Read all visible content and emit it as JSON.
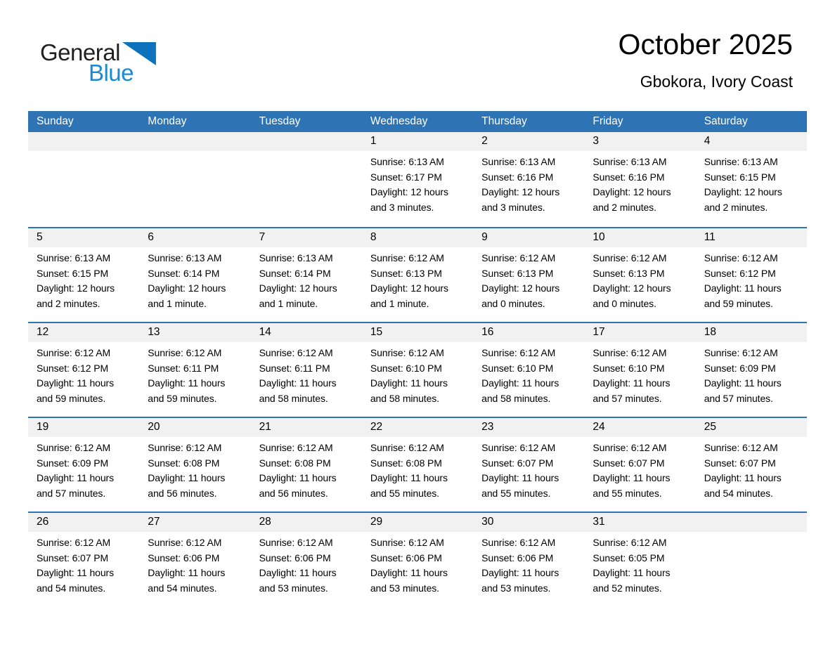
{
  "logo": {
    "word1": "General",
    "word2": "Blue"
  },
  "header": {
    "title": "October 2025",
    "location": "Gbokora, Ivory Coast"
  },
  "colors": {
    "accent": "#2E74B5",
    "day_band": "#F1F1F1",
    "logo_dark": "#231F20",
    "logo_blue": "#1A8AD2",
    "logo_triangle": "#0C72BC",
    "weekday_text": "#FFFFFF"
  },
  "calendar": {
    "weekdays": [
      "Sunday",
      "Monday",
      "Tuesday",
      "Wednesday",
      "Thursday",
      "Friday",
      "Saturday"
    ],
    "weeks": [
      [
        {
          "day": "",
          "lines": []
        },
        {
          "day": "",
          "lines": []
        },
        {
          "day": "",
          "lines": []
        },
        {
          "day": "1",
          "lines": [
            "Sunrise: 6:13 AM",
            "Sunset: 6:17 PM",
            "Daylight: 12 hours",
            "and 3 minutes."
          ]
        },
        {
          "day": "2",
          "lines": [
            "Sunrise: 6:13 AM",
            "Sunset: 6:16 PM",
            "Daylight: 12 hours",
            "and 3 minutes."
          ]
        },
        {
          "day": "3",
          "lines": [
            "Sunrise: 6:13 AM",
            "Sunset: 6:16 PM",
            "Daylight: 12 hours",
            "and 2 minutes."
          ]
        },
        {
          "day": "4",
          "lines": [
            "Sunrise: 6:13 AM",
            "Sunset: 6:15 PM",
            "Daylight: 12 hours",
            "and 2 minutes."
          ]
        }
      ],
      [
        {
          "day": "5",
          "lines": [
            "Sunrise: 6:13 AM",
            "Sunset: 6:15 PM",
            "Daylight: 12 hours",
            "and 2 minutes."
          ]
        },
        {
          "day": "6",
          "lines": [
            "Sunrise: 6:13 AM",
            "Sunset: 6:14 PM",
            "Daylight: 12 hours",
            "and 1 minute."
          ]
        },
        {
          "day": "7",
          "lines": [
            "Sunrise: 6:13 AM",
            "Sunset: 6:14 PM",
            "Daylight: 12 hours",
            "and 1 minute."
          ]
        },
        {
          "day": "8",
          "lines": [
            "Sunrise: 6:12 AM",
            "Sunset: 6:13 PM",
            "Daylight: 12 hours",
            "and 1 minute."
          ]
        },
        {
          "day": "9",
          "lines": [
            "Sunrise: 6:12 AM",
            "Sunset: 6:13 PM",
            "Daylight: 12 hours",
            "and 0 minutes."
          ]
        },
        {
          "day": "10",
          "lines": [
            "Sunrise: 6:12 AM",
            "Sunset: 6:13 PM",
            "Daylight: 12 hours",
            "and 0 minutes."
          ]
        },
        {
          "day": "11",
          "lines": [
            "Sunrise: 6:12 AM",
            "Sunset: 6:12 PM",
            "Daylight: 11 hours",
            "and 59 minutes."
          ]
        }
      ],
      [
        {
          "day": "12",
          "lines": [
            "Sunrise: 6:12 AM",
            "Sunset: 6:12 PM",
            "Daylight: 11 hours",
            "and 59 minutes."
          ]
        },
        {
          "day": "13",
          "lines": [
            "Sunrise: 6:12 AM",
            "Sunset: 6:11 PM",
            "Daylight: 11 hours",
            "and 59 minutes."
          ]
        },
        {
          "day": "14",
          "lines": [
            "Sunrise: 6:12 AM",
            "Sunset: 6:11 PM",
            "Daylight: 11 hours",
            "and 58 minutes."
          ]
        },
        {
          "day": "15",
          "lines": [
            "Sunrise: 6:12 AM",
            "Sunset: 6:10 PM",
            "Daylight: 11 hours",
            "and 58 minutes."
          ]
        },
        {
          "day": "16",
          "lines": [
            "Sunrise: 6:12 AM",
            "Sunset: 6:10 PM",
            "Daylight: 11 hours",
            "and 58 minutes."
          ]
        },
        {
          "day": "17",
          "lines": [
            "Sunrise: 6:12 AM",
            "Sunset: 6:10 PM",
            "Daylight: 11 hours",
            "and 57 minutes."
          ]
        },
        {
          "day": "18",
          "lines": [
            "Sunrise: 6:12 AM",
            "Sunset: 6:09 PM",
            "Daylight: 11 hours",
            "and 57 minutes."
          ]
        }
      ],
      [
        {
          "day": "19",
          "lines": [
            "Sunrise: 6:12 AM",
            "Sunset: 6:09 PM",
            "Daylight: 11 hours",
            "and 57 minutes."
          ]
        },
        {
          "day": "20",
          "lines": [
            "Sunrise: 6:12 AM",
            "Sunset: 6:08 PM",
            "Daylight: 11 hours",
            "and 56 minutes."
          ]
        },
        {
          "day": "21",
          "lines": [
            "Sunrise: 6:12 AM",
            "Sunset: 6:08 PM",
            "Daylight: 11 hours",
            "and 56 minutes."
          ]
        },
        {
          "day": "22",
          "lines": [
            "Sunrise: 6:12 AM",
            "Sunset: 6:08 PM",
            "Daylight: 11 hours",
            "and 55 minutes."
          ]
        },
        {
          "day": "23",
          "lines": [
            "Sunrise: 6:12 AM",
            "Sunset: 6:07 PM",
            "Daylight: 11 hours",
            "and 55 minutes."
          ]
        },
        {
          "day": "24",
          "lines": [
            "Sunrise: 6:12 AM",
            "Sunset: 6:07 PM",
            "Daylight: 11 hours",
            "and 55 minutes."
          ]
        },
        {
          "day": "25",
          "lines": [
            "Sunrise: 6:12 AM",
            "Sunset: 6:07 PM",
            "Daylight: 11 hours",
            "and 54 minutes."
          ]
        }
      ],
      [
        {
          "day": "26",
          "lines": [
            "Sunrise: 6:12 AM",
            "Sunset: 6:07 PM",
            "Daylight: 11 hours",
            "and 54 minutes."
          ]
        },
        {
          "day": "27",
          "lines": [
            "Sunrise: 6:12 AM",
            "Sunset: 6:06 PM",
            "Daylight: 11 hours",
            "and 54 minutes."
          ]
        },
        {
          "day": "28",
          "lines": [
            "Sunrise: 6:12 AM",
            "Sunset: 6:06 PM",
            "Daylight: 11 hours",
            "and 53 minutes."
          ]
        },
        {
          "day": "29",
          "lines": [
            "Sunrise: 6:12 AM",
            "Sunset: 6:06 PM",
            "Daylight: 11 hours",
            "and 53 minutes."
          ]
        },
        {
          "day": "30",
          "lines": [
            "Sunrise: 6:12 AM",
            "Sunset: 6:06 PM",
            "Daylight: 11 hours",
            "and 53 minutes."
          ]
        },
        {
          "day": "31",
          "lines": [
            "Sunrise: 6:12 AM",
            "Sunset: 6:05 PM",
            "Daylight: 11 hours",
            "and 52 minutes."
          ]
        },
        {
          "day": "",
          "lines": []
        }
      ]
    ]
  }
}
